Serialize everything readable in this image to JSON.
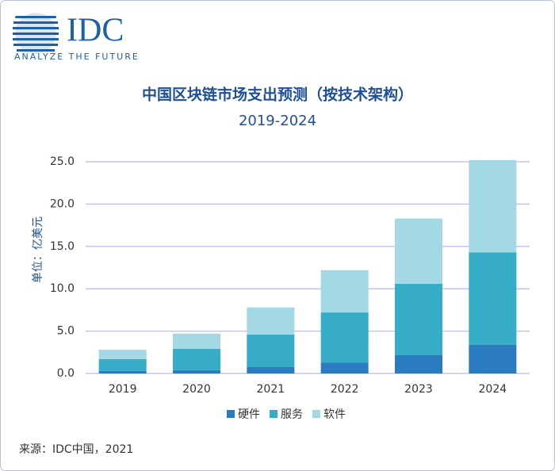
{
  "logo": {
    "name": "IDC",
    "tagline": "ANALYZE THE FUTURE"
  },
  "source": "来源：IDC中国，2021",
  "chart_data": {
    "type": "stacked-bar",
    "title": "中国区块链市场支出预测（按技术架构）",
    "subtitle": "2019-2024",
    "y_label": "单位：亿美元",
    "categories": [
      "2019",
      "2020",
      "2021",
      "2022",
      "2023",
      "2024"
    ],
    "series": [
      {
        "name": "硬件",
        "color": "#2a7bc0",
        "values": [
          0.3,
          0.4,
          0.75,
          1.3,
          2.15,
          3.4
        ]
      },
      {
        "name": "服务",
        "color": "#36acc7",
        "values": [
          1.4,
          2.5,
          3.85,
          5.9,
          8.45,
          10.9
        ]
      },
      {
        "name": "软件",
        "color": "#a2d9e5",
        "values": [
          1.1,
          1.8,
          3.2,
          5.0,
          7.7,
          10.9
        ]
      }
    ],
    "ylim": [
      0,
      25
    ],
    "yticks": [
      {
        "value": 0,
        "label": "0.0"
      },
      {
        "value": 5,
        "label": "5.0"
      },
      {
        "value": 10,
        "label": "10.0"
      },
      {
        "value": 15,
        "label": "15.0"
      },
      {
        "value": 20,
        "label": "20.0"
      },
      {
        "value": 25,
        "label": "25.0"
      }
    ],
    "grid": true,
    "legend": "bottom"
  }
}
